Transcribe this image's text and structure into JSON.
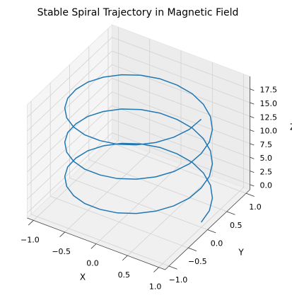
{
  "chart_data": {
    "type": "line3d",
    "title": "Stable Spiral Trajectory in Magnetic Field",
    "xlabel": "X",
    "ylabel": "Y",
    "zlabel": "Z",
    "series": [
      {
        "color": "#1f77b4",
        "x": [
          1,
          0.97,
          0.87,
          0.71,
          0.5,
          0.26,
          0,
          -0.26,
          -0.5,
          -0.71,
          -0.87,
          -0.97,
          -1,
          -0.97,
          -0.87,
          -0.71,
          -0.5,
          -0.26,
          0,
          0.26,
          0.5,
          0.71,
          0.87,
          0.97,
          1,
          0.97,
          0.87,
          0.71,
          0.5,
          0.26,
          0,
          -0.26,
          -0.5,
          -0.71,
          -0.87,
          -0.97,
          -1,
          -0.97,
          -0.87,
          -0.71,
          -0.5,
          -0.26,
          0,
          0.26,
          0.5,
          0.71,
          0.87,
          0.97,
          1,
          0.97,
          0.87,
          0.71,
          0.5,
          0.26,
          0,
          -0.26,
          -0.5,
          -0.71,
          -0.87,
          -0.97,
          -1,
          -0.97,
          -0.87,
          -0.71,
          -0.5,
          -0.26,
          0,
          0.26,
          0.5,
          0.71,
          0.87,
          0.97,
          1
        ],
        "y": [
          0,
          0.26,
          0.5,
          0.71,
          0.87,
          0.97,
          1,
          0.97,
          0.87,
          0.71,
          0.5,
          0.26,
          0,
          -0.26,
          -0.5,
          -0.71,
          -0.87,
          -0.97,
          -1,
          -0.97,
          -0.87,
          -0.71,
          -0.5,
          -0.26,
          0,
          0.26,
          0.5,
          0.71,
          0.87,
          0.97,
          1,
          0.97,
          0.87,
          0.71,
          0.5,
          0.26,
          0,
          -0.26,
          -0.5,
          -0.71,
          -0.87,
          -0.97,
          -1,
          -0.97,
          -0.87,
          -0.71,
          -0.5,
          -0.26,
          0,
          0.26,
          0.5,
          0.71,
          0.87,
          0.97,
          1,
          0.97,
          0.87,
          0.71,
          0.5,
          0.26,
          0,
          -0.26,
          -0.5,
          -0.71,
          -0.87,
          -0.97,
          -1,
          -0.97,
          -0.87,
          -0.71,
          -0.5,
          -0.26,
          0
        ],
        "z": [
          0,
          0.26,
          0.52,
          0.79,
          1.05,
          1.31,
          1.57,
          1.83,
          2.09,
          2.36,
          2.62,
          2.88,
          3.14,
          3.4,
          3.67,
          3.93,
          4.19,
          4.45,
          4.71,
          4.97,
          5.24,
          5.5,
          5.76,
          6.02,
          6.28,
          6.54,
          6.81,
          7.07,
          7.33,
          7.59,
          7.85,
          8.11,
          8.38,
          8.64,
          8.9,
          9.16,
          9.42,
          9.69,
          9.95,
          10.21,
          10.47,
          10.73,
          11,
          11.26,
          11.52,
          11.78,
          12.04,
          12.3,
          12.57,
          12.83,
          13.09,
          13.35,
          13.61,
          13.87,
          14.14,
          14.4,
          14.66,
          14.92,
          15.18,
          15.45,
          15.71,
          15.97,
          16.23,
          16.49,
          16.76,
          17.02,
          17.28,
          17.54,
          17.8,
          18.06,
          18.33,
          18.59,
          18.85
        ]
      }
    ],
    "xlim": [
      -1.1,
      1.1
    ],
    "ylim": [
      -1.1,
      1.1
    ],
    "zlim": [
      -0.94,
      19.79
    ],
    "xticks": [
      {
        "value": -1,
        "label": "−1.0"
      },
      {
        "value": -0.5,
        "label": "−0.5"
      },
      {
        "value": 0,
        "label": "0.0"
      },
      {
        "value": 0.5,
        "label": "0.5"
      },
      {
        "value": 1,
        "label": "1.0"
      }
    ],
    "yticks": [
      {
        "value": -1,
        "label": "−1.0"
      },
      {
        "value": -0.5,
        "label": "−0.5"
      },
      {
        "value": 0,
        "label": "0.0"
      },
      {
        "value": 0.5,
        "label": "0.5"
      },
      {
        "value": 1,
        "label": "1.0"
      }
    ],
    "zticks": [
      {
        "value": 0,
        "label": "0.0"
      },
      2.5,
      {
        "value": 5,
        "label": "5.0"
      },
      7.5,
      {
        "value": 10,
        "label": "10.0"
      },
      12.5,
      {
        "value": 15,
        "label": "15.0"
      },
      17.5
    ],
    "grid": true
  }
}
